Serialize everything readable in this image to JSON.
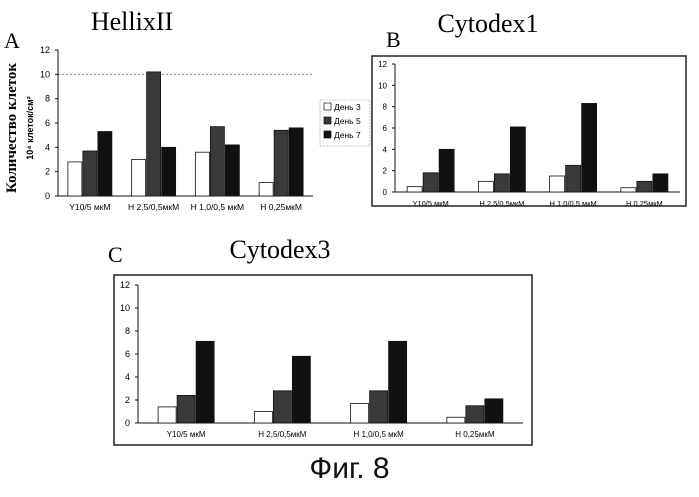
{
  "figure": {
    "caption": "Фиг. 8",
    "y_axis_title": "Количество клеток",
    "y_axis_unit": "10⁴ клеток/см²"
  },
  "chart_data": [
    {
      "type": "bar",
      "panel_letter": "A",
      "title": "HellixII",
      "categories": [
        "Y10/5 мкМ",
        "Н 2,5/0,5мкМ",
        "Н 1,0/0,5 мкМ",
        "Н 0,25мкМ"
      ],
      "series": [
        {
          "name": "День 3",
          "values": [
            2.8,
            3.0,
            3.6,
            1.1
          ]
        },
        {
          "name": "День 5",
          "values": [
            3.7,
            10.2,
            5.7,
            5.4
          ]
        },
        {
          "name": "День 7",
          "values": [
            5.3,
            4.0,
            4.2,
            5.6
          ]
        }
      ],
      "ylim": [
        0,
        12
      ],
      "yticks": [
        0,
        2,
        4,
        6,
        8,
        10,
        12
      ],
      "legend": "right",
      "gridline_at": 10,
      "colors": [
        "#ffffff",
        "#3a3a3a",
        "#111111"
      ]
    },
    {
      "type": "bar",
      "panel_letter": "B",
      "title": "Cytodex1",
      "categories": [
        "Y10/5 мкМ",
        "Н 2,5/0,5мкМ",
        "Н 1,0/0,5 мкМ",
        "Н 0,25мкМ"
      ],
      "series": [
        {
          "values": [
            0.5,
            1.0,
            1.5,
            0.4
          ]
        },
        {
          "values": [
            1.8,
            1.7,
            2.5,
            1.0
          ]
        },
        {
          "values": [
            4.0,
            6.1,
            8.3,
            1.7
          ]
        }
      ],
      "ylim": [
        0,
        12
      ],
      "yticks": [
        0,
        2,
        4,
        6,
        8,
        10,
        12
      ],
      "colors": [
        "#ffffff",
        "#3a3a3a",
        "#111111"
      ]
    },
    {
      "type": "bar",
      "panel_letter": "C",
      "title": "Cytodex3",
      "categories": [
        "Y10/5 мкМ",
        "Н 2,5/0,5мкМ",
        "Н 1,0/0,5 мкМ",
        "Н 0,25мкМ"
      ],
      "series": [
        {
          "values": [
            1.4,
            1.0,
            1.7,
            0.5
          ]
        },
        {
          "values": [
            2.4,
            2.8,
            2.8,
            1.5
          ]
        },
        {
          "values": [
            7.1,
            5.8,
            7.1,
            2.1
          ]
        }
      ],
      "ylim": [
        0,
        12
      ],
      "yticks": [
        0,
        2,
        4,
        6,
        8,
        10,
        12
      ],
      "colors": [
        "#ffffff",
        "#3a3a3a",
        "#111111"
      ]
    }
  ]
}
